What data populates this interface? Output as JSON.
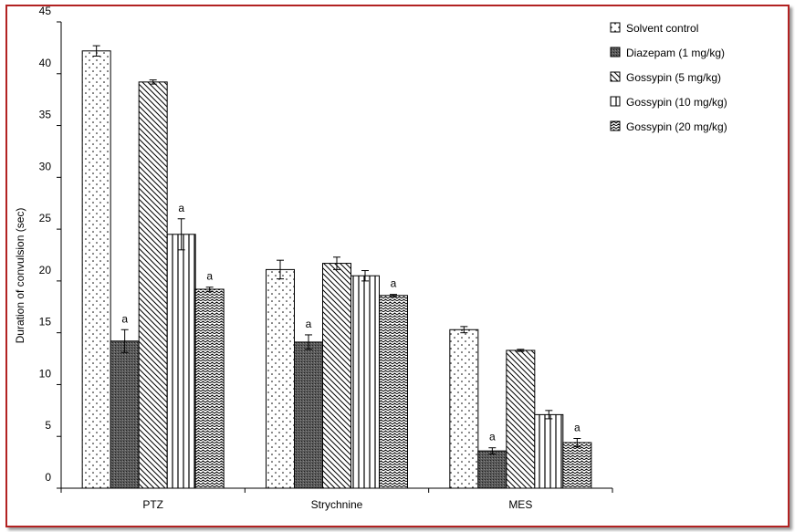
{
  "chart_data": {
    "type": "bar",
    "title": "",
    "xlabel": "",
    "ylabel": "Duration of convulsion (sec)",
    "ylim": [
      0,
      45
    ],
    "yticks": [
      0,
      5,
      10,
      15,
      20,
      25,
      30,
      35,
      40,
      45
    ],
    "grid": false,
    "legend_position": "top-right",
    "categories": [
      "PTZ",
      "Strychnine",
      "MES"
    ],
    "series": [
      {
        "name": "Solvent control",
        "pattern": "dots",
        "values": [
          42.2,
          21.1,
          15.3
        ],
        "errors": [
          0.5,
          0.9,
          0.3
        ],
        "annotations": [
          "",
          "",
          ""
        ]
      },
      {
        "name": "Diazepam (1 mg/kg)",
        "pattern": "dark-dense",
        "values": [
          14.2,
          14.1,
          3.6
        ],
        "errors": [
          1.1,
          0.7,
          0.3
        ],
        "annotations": [
          "a",
          "a",
          "a"
        ]
      },
      {
        "name": "Gossypin (5 mg/kg)",
        "pattern": "diagonal-down",
        "values": [
          39.2,
          21.7,
          13.3
        ],
        "errors": [
          0.2,
          0.6,
          0.1
        ],
        "annotations": [
          "",
          "",
          ""
        ]
      },
      {
        "name": "Gossypin (10 mg/kg)",
        "pattern": "vertical-lines",
        "values": [
          24.5,
          20.5,
          7.1
        ],
        "errors": [
          1.5,
          0.5,
          0.4
        ],
        "annotations": [
          "a",
          "",
          ""
        ]
      },
      {
        "name": "Gossypin (20 mg/kg)",
        "pattern": "zigzag",
        "values": [
          19.2,
          18.6,
          4.4
        ],
        "errors": [
          0.2,
          0.1,
          0.4
        ],
        "annotations": [
          "a",
          "a",
          "a"
        ]
      }
    ]
  },
  "colors": {
    "frame": "#b22222",
    "bar_stroke": "#000000",
    "dark_fill": "#5a5a5a"
  }
}
